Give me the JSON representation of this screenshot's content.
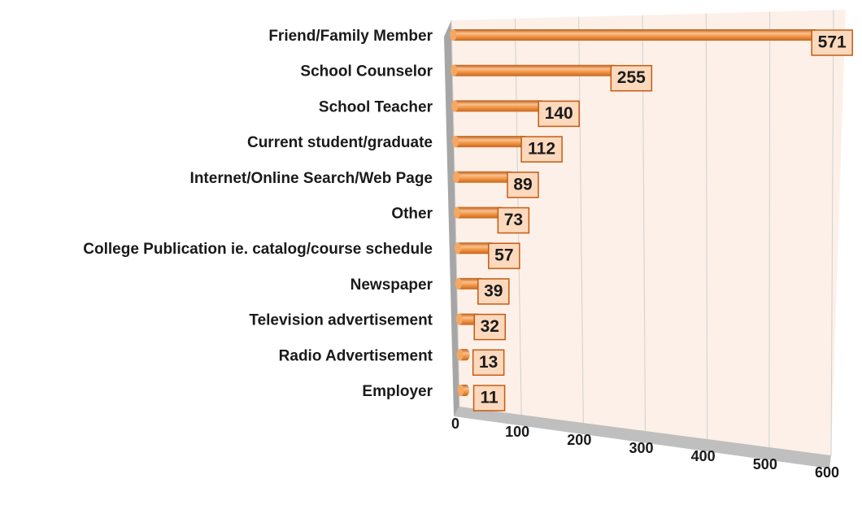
{
  "chart_data": {
    "type": "bar",
    "orientation": "horizontal",
    "categories": [
      "Friend/Family Member",
      "School Counselor",
      "School Teacher",
      "Current student/graduate",
      "Internet/Online Search/Web Page",
      "Other",
      "College Publication ie. catalog/course schedule",
      "Newspaper",
      "Television advertisement",
      "Radio Advertisement",
      "Employer"
    ],
    "values": [
      571,
      255,
      140,
      112,
      89,
      73,
      57,
      39,
      32,
      13,
      11
    ],
    "color": "#f39a4c",
    "xlim": [
      0,
      600
    ],
    "xticks": [
      0,
      100,
      200,
      300,
      400,
      500,
      600
    ],
    "grid": true
  }
}
